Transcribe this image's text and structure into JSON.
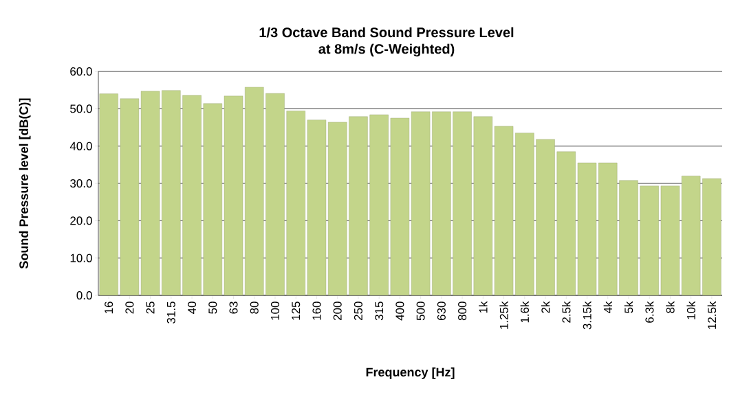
{
  "chart_data": {
    "type": "bar",
    "title": "1/3 Octave Band Sound Pressure Level\nat 8m/s (C-Weighted)",
    "xlabel": "Frequency [Hz]",
    "ylabel": "Sound Pressure level [dB(C)]",
    "categories": [
      "16",
      "20",
      "25",
      "31.5",
      "40",
      "50",
      "63",
      "80",
      "100",
      "125",
      "160",
      "200",
      "250",
      "315",
      "400",
      "500",
      "630",
      "800",
      "1k",
      "1.25k",
      "1.6k",
      "2k",
      "2.5k",
      "3.15k",
      "4k",
      "5k",
      "6.3k",
      "8k",
      "10k",
      "12.5k"
    ],
    "values": [
      54.0,
      52.7,
      54.7,
      54.9,
      53.6,
      51.4,
      53.4,
      55.8,
      54.1,
      49.4,
      47.0,
      46.4,
      47.9,
      48.4,
      47.5,
      49.2,
      49.2,
      49.2,
      47.9,
      45.3,
      43.5,
      41.8,
      38.5,
      35.5,
      35.5,
      30.8,
      29.3,
      29.3,
      32.0,
      31.3
    ],
    "color": "#c3d58a",
    "ylim": [
      0,
      60
    ],
    "yticks": [
      {
        "value": 0,
        "label": "0.0"
      },
      {
        "value": 10,
        "label": "10.0"
      },
      {
        "value": 20,
        "label": "20.0"
      },
      {
        "value": 30,
        "label": "30.0"
      },
      {
        "value": 40,
        "label": "40.0"
      },
      {
        "value": 50,
        "label": "50.0"
      },
      {
        "value": 60,
        "label": "60.0"
      }
    ],
    "grid": "y"
  }
}
